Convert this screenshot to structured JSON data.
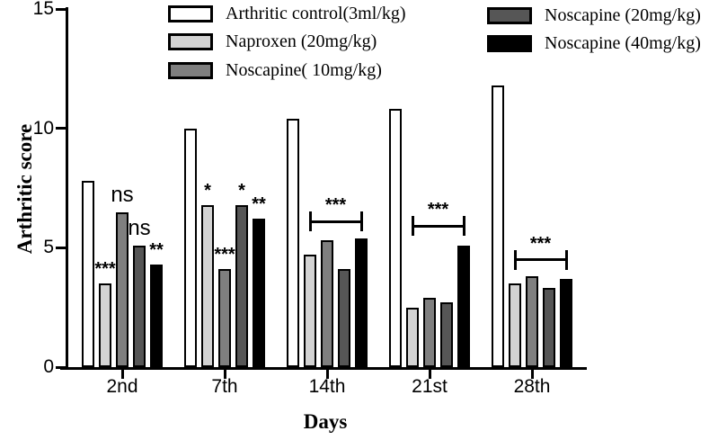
{
  "chart_data": {
    "type": "bar",
    "title": "",
    "xlabel": "Days",
    "ylabel": "Arthritic score",
    "ylim": [
      0,
      15
    ],
    "yticks": [
      0,
      5,
      10,
      15
    ],
    "categories": [
      "2nd",
      "7th",
      "14th",
      "21st",
      "28th"
    ],
    "series": [
      {
        "name": "Arthritic control(3ml/kg)",
        "color": "#ffffff",
        "values": [
          7.8,
          10.0,
          10.4,
          10.8,
          11.8
        ]
      },
      {
        "name": "Naproxen (20mg/kg)",
        "color": "#d3d3d3",
        "values": [
          3.5,
          6.8,
          4.7,
          2.5,
          3.5
        ]
      },
      {
        "name": "Noscapine( 10mg/kg)",
        "color": "#7f7f7f",
        "values": [
          6.5,
          4.1,
          5.3,
          2.9,
          3.8
        ]
      },
      {
        "name": "Noscapine (20mg/kg)",
        "color": "#565656",
        "values": [
          5.1,
          6.8,
          4.1,
          2.7,
          3.3
        ]
      },
      {
        "name": "Noscapine (40mg/kg)",
        "color": "#000000",
        "values": [
          4.3,
          6.2,
          5.4,
          5.1,
          3.7
        ]
      }
    ],
    "bar_annotations": [
      {
        "group": 0,
        "series": 1,
        "text": "***"
      },
      {
        "group": 0,
        "series": 2,
        "text": "ns"
      },
      {
        "group": 0,
        "series": 3,
        "text": "ns"
      },
      {
        "group": 0,
        "series": 4,
        "text": "**"
      },
      {
        "group": 1,
        "series": 1,
        "text": "*"
      },
      {
        "group": 1,
        "series": 2,
        "text": "***"
      },
      {
        "group": 1,
        "series": 3,
        "text": "*"
      },
      {
        "group": 1,
        "series": 4,
        "text": "**"
      }
    ],
    "brackets": [
      {
        "group": 2,
        "from_series": 1,
        "to_series": 4,
        "y": 6.1,
        "text": "***"
      },
      {
        "group": 3,
        "from_series": 1,
        "to_series": 4,
        "y": 5.9,
        "text": "***"
      },
      {
        "group": 4,
        "from_series": 1,
        "to_series": 4,
        "y": 4.5,
        "text": "***"
      }
    ],
    "legend_position": "top",
    "grid": false,
    "axis_color": "#000000",
    "background_color": "#ffffff"
  }
}
